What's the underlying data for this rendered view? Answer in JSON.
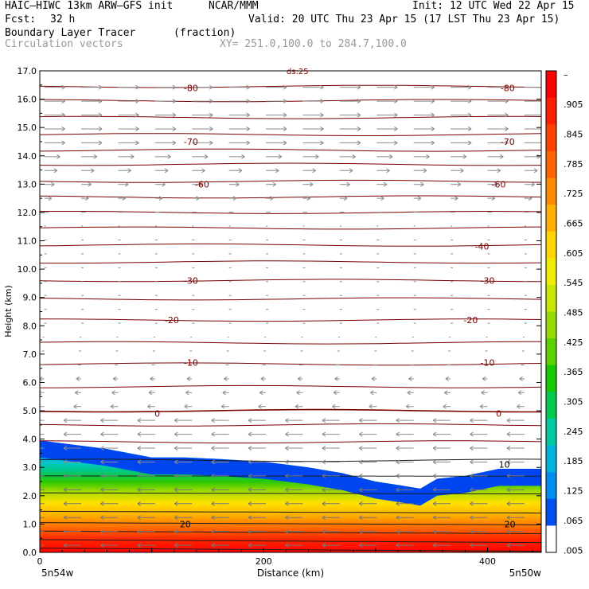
{
  "header": {
    "model": "HAIC–HIWC 13km ARW–GFS init",
    "org": "NCAR/MMM",
    "init": "Init: 12 UTC Wed 22 Apr 15",
    "fcst_label": "Fcst:",
    "fcst_value": "32 h",
    "valid": "Valid: 20 UTC Thu 23 Apr 15 (17 LST Thu 23 Apr 15)",
    "field": "Boundary Layer Tracer",
    "units": "(fraction)",
    "vectors": "Circulation vectors",
    "xy": "XY= 251.0,100.0 to 284.7,100.0"
  },
  "chart_data": {
    "type": "heatmap",
    "ylabel": "Height (km)",
    "xlabel": "Distance (km)",
    "x_range": [
      0,
      448
    ],
    "ylim": [
      0,
      17
    ],
    "y_ticks": [
      "0.0",
      "1.0",
      "2.0",
      "3.0",
      "4.0",
      "5.0",
      "6.0",
      "7.0",
      "8.0",
      "9.0",
      "10.0",
      "11.0",
      "12.0",
      "13.0",
      "14.0",
      "15.0",
      "16.0",
      "17.0"
    ],
    "x_ticks": [
      {
        "value": 0,
        "label": "0"
      },
      {
        "value": 200,
        "label": "200"
      },
      {
        "value": 400,
        "label": "400"
      }
    ],
    "x_end_labels": {
      "left": "5n54w",
      "right": "5n50w"
    },
    "colorbar": {
      "labels": [
        "–",
        ".905",
        ".845",
        ".785",
        ".725",
        ".665",
        ".605",
        ".545",
        ".485",
        ".425",
        ".365",
        ".305",
        ".245",
        ".185",
        ".125",
        ".065",
        ".005"
      ],
      "colors": [
        "#ff0000",
        "#ff1e00",
        "#ff4000",
        "#ff6400",
        "#ff8a00",
        "#ffb000",
        "#ffd400",
        "#f0ec00",
        "#c8e600",
        "#96dc00",
        "#5ad200",
        "#18c800",
        "#00c850",
        "#00c8a0",
        "#00b4dc",
        "#008cf0",
        "#0050f0",
        "#ffffff"
      ]
    },
    "contour_labels": [
      {
        "x": 135,
        "y": 16.4,
        "text": "-80"
      },
      {
        "x": 418,
        "y": 16.4,
        "text": "-80"
      },
      {
        "x": 135,
        "y": 14.5,
        "text": "-70"
      },
      {
        "x": 418,
        "y": 14.5,
        "text": "-70"
      },
      {
        "x": 145,
        "y": 13.0,
        "text": "-60"
      },
      {
        "x": 410,
        "y": 13.0,
        "text": "-60"
      },
      {
        "x": 395,
        "y": 10.8,
        "text": "-40"
      },
      {
        "x": 135,
        "y": 9.6,
        "text": "-30"
      },
      {
        "x": 400,
        "y": 9.6,
        "text": "-30"
      },
      {
        "x": 118,
        "y": 8.2,
        "text": "-20"
      },
      {
        "x": 385,
        "y": 8.2,
        "text": "-20"
      },
      {
        "x": 135,
        "y": 6.7,
        "text": "-10"
      },
      {
        "x": 400,
        "y": 6.7,
        "text": "-10"
      },
      {
        "x": 105,
        "y": 4.9,
        "text": "0"
      },
      {
        "x": 410,
        "y": 4.9,
        "text": "0"
      },
      {
        "x": 415,
        "y": 3.1,
        "text": "10"
      },
      {
        "x": 130,
        "y": 1.0,
        "text": "20"
      },
      {
        "x": 420,
        "y": 1.0,
        "text": "20"
      }
    ],
    "top_clip_label": "ds:25",
    "pbl_top": [
      [
        0,
        3.95
      ],
      [
        20,
        3.85
      ],
      [
        60,
        3.65
      ],
      [
        100,
        3.35
      ],
      [
        130,
        3.35
      ],
      [
        160,
        3.3
      ],
      [
        200,
        3.2
      ],
      [
        240,
        3.0
      ],
      [
        270,
        2.8
      ],
      [
        300,
        2.5
      ],
      [
        325,
        2.35
      ],
      [
        340,
        2.25
      ],
      [
        355,
        2.6
      ],
      [
        380,
        2.7
      ],
      [
        410,
        2.95
      ],
      [
        448,
        2.95
      ]
    ]
  }
}
